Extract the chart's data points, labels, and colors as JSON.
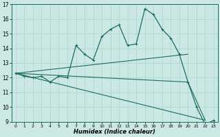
{
  "xlabel": "Humidex (Indice chaleur)",
  "bg_color": "#cce8e4",
  "line_color": "#1a6b5e",
  "grid_color": "#b0d8d2",
  "xlim": [
    -0.5,
    23.5
  ],
  "ylim": [
    9,
    17
  ],
  "xtick_labels": [
    "0",
    "1",
    "2",
    "3",
    "4",
    "5",
    "6",
    "7",
    "8",
    "9",
    "10",
    "11",
    "12",
    "13",
    "14",
    "15",
    "16",
    "17",
    "18",
    "19",
    "20",
    "21",
    "22",
    "23"
  ],
  "yticks": [
    9,
    10,
    11,
    12,
    13,
    14,
    15,
    16,
    17
  ],
  "main_curve": [
    12.3,
    12.1,
    12.0,
    12.1,
    11.7,
    12.1,
    12.0,
    14.2,
    13.6,
    13.2,
    14.8,
    15.3,
    15.6,
    14.2,
    14.3,
    16.7,
    16.3,
    15.3,
    14.7,
    13.6,
    11.7,
    10.0,
    8.8,
    9.1
  ],
  "line1": {
    "x": [
      0,
      20
    ],
    "y": [
      12.3,
      13.6
    ]
  },
  "line2": {
    "x": [
      0,
      20
    ],
    "y": [
      12.3,
      11.7
    ]
  },
  "line3": {
    "x": [
      0,
      20,
      22
    ],
    "y": [
      12.3,
      11.7,
      9.1
    ]
  }
}
